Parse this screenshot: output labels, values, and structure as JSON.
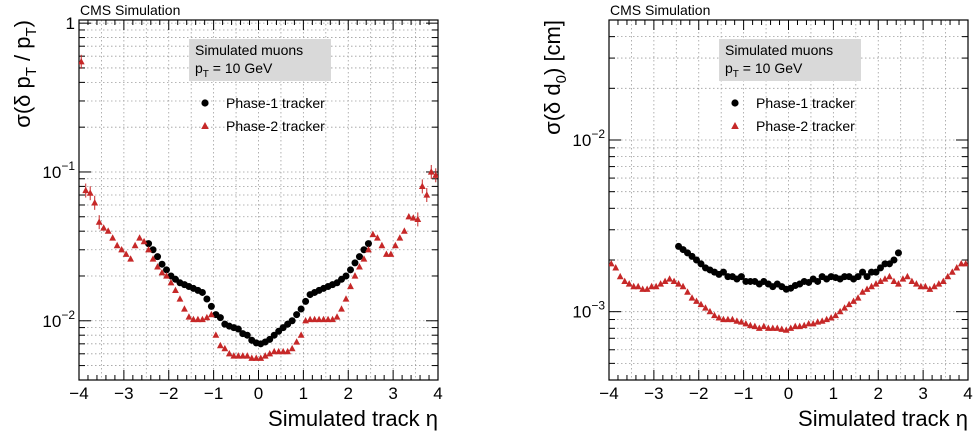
{
  "chart_data": [
    {
      "type": "scatter",
      "header": "CMS Simulation",
      "annotation": {
        "line1": "Simulated muons",
        "line2_sym": "p",
        "line2_sub": "T",
        "line2_rest": " = 10 GeV"
      },
      "xlabel": "Simulated track η",
      "ylabel_parts": {
        "main": "σ(δ p",
        "sub1": "T",
        "mid": " / p",
        "sub2": "T",
        "end": ")"
      },
      "xlim": [
        -4,
        4
      ],
      "ylim": [
        0.004,
        1.05
      ],
      "yscale": "log",
      "x_ticks": [
        -4,
        -3,
        -2,
        -1,
        0,
        1,
        2,
        3,
        4
      ],
      "x_tick_labels": [
        "−4",
        "−3",
        "−2",
        "−1",
        "0",
        "1",
        "2",
        "3",
        "4"
      ],
      "y_ticks": [
        0.01,
        0.1,
        1
      ],
      "y_tick_labels": [
        {
          "base": "10",
          "exp": "−2"
        },
        {
          "base": "10",
          "exp": "−1"
        },
        {
          "base": "1",
          "exp": ""
        }
      ],
      "grid": true,
      "legend_position": "top-center",
      "series": [
        {
          "name": "Phase-1 tracker",
          "marker": "circle",
          "color": "#000000",
          "x": [
            -2.45,
            -2.35,
            -2.25,
            -2.15,
            -2.05,
            -1.95,
            -1.85,
            -1.75,
            -1.65,
            -1.55,
            -1.45,
            -1.35,
            -1.25,
            -1.15,
            -1.05,
            -0.95,
            -0.85,
            -0.75,
            -0.65,
            -0.55,
            -0.45,
            -0.35,
            -0.25,
            -0.15,
            -0.05,
            0.05,
            0.15,
            0.25,
            0.35,
            0.45,
            0.55,
            0.65,
            0.75,
            0.85,
            0.95,
            1.05,
            1.15,
            1.25,
            1.35,
            1.45,
            1.55,
            1.65,
            1.75,
            1.85,
            1.95,
            2.05,
            2.15,
            2.25,
            2.35,
            2.45
          ],
          "y": [
            0.033,
            0.03,
            0.027,
            0.024,
            0.022,
            0.02,
            0.019,
            0.018,
            0.0175,
            0.017,
            0.0165,
            0.016,
            0.0155,
            0.014,
            0.0125,
            0.011,
            0.0105,
            0.0095,
            0.0092,
            0.009,
            0.0088,
            0.0082,
            0.008,
            0.0074,
            0.0071,
            0.007,
            0.0072,
            0.0075,
            0.008,
            0.0085,
            0.009,
            0.0095,
            0.01,
            0.011,
            0.012,
            0.0135,
            0.015,
            0.0155,
            0.016,
            0.0165,
            0.017,
            0.0175,
            0.018,
            0.019,
            0.02,
            0.022,
            0.0245,
            0.027,
            0.03,
            0.033
          ]
        },
        {
          "name": "Phase-2 tracker",
          "marker": "triangle",
          "color": "#c62828",
          "x": [
            -3.95,
            -3.85,
            -3.75,
            -3.65,
            -3.55,
            -3.45,
            -3.35,
            -3.25,
            -3.15,
            -3.05,
            -2.95,
            -2.85,
            -2.75,
            -2.65,
            -2.55,
            -2.45,
            -2.35,
            -2.25,
            -2.15,
            -2.05,
            -1.95,
            -1.85,
            -1.75,
            -1.65,
            -1.55,
            -1.45,
            -1.35,
            -1.25,
            -1.15,
            -1.05,
            -0.95,
            -0.85,
            -0.75,
            -0.65,
            -0.55,
            -0.45,
            -0.35,
            -0.25,
            -0.15,
            -0.05,
            0.05,
            0.15,
            0.25,
            0.35,
            0.45,
            0.55,
            0.65,
            0.75,
            0.85,
            0.95,
            1.05,
            1.15,
            1.25,
            1.35,
            1.45,
            1.55,
            1.65,
            1.75,
            1.85,
            1.95,
            2.05,
            2.15,
            2.25,
            2.35,
            2.45,
            2.55,
            2.65,
            2.75,
            2.85,
            2.95,
            3.05,
            3.15,
            3.25,
            3.35,
            3.45,
            3.55,
            3.65,
            3.75,
            3.85,
            3.95
          ],
          "y": [
            0.55,
            0.075,
            0.072,
            0.062,
            0.046,
            0.042,
            0.04,
            0.036,
            0.032,
            0.03,
            0.028,
            0.026,
            0.032,
            0.036,
            0.034,
            0.03,
            0.026,
            0.023,
            0.021,
            0.02,
            0.018,
            0.016,
            0.014,
            0.012,
            0.0106,
            0.0102,
            0.0102,
            0.0102,
            0.0105,
            0.011,
            0.008,
            0.0068,
            0.0065,
            0.006,
            0.0058,
            0.0058,
            0.0058,
            0.0058,
            0.0056,
            0.0056,
            0.0056,
            0.0058,
            0.006,
            0.0062,
            0.0062,
            0.0062,
            0.0062,
            0.0065,
            0.0072,
            0.008,
            0.01,
            0.0102,
            0.0102,
            0.0102,
            0.0102,
            0.0102,
            0.0102,
            0.0106,
            0.012,
            0.014,
            0.017,
            0.02,
            0.023,
            0.026,
            0.03,
            0.038,
            0.036,
            0.032,
            0.028,
            0.028,
            0.032,
            0.036,
            0.04,
            0.05,
            0.049,
            0.048,
            0.08,
            0.07,
            0.1,
            0.095
          ]
        }
      ]
    },
    {
      "type": "scatter",
      "header": "CMS Simulation",
      "annotation": {
        "line1": "Simulated muons",
        "line2_sym": "p",
        "line2_sub": "T",
        "line2_rest": " = 10 GeV"
      },
      "xlabel": "Simulated track η",
      "ylabel_parts": {
        "main": "σ(δ d",
        "sub1": "0",
        "end": ") [cm]"
      },
      "xlim": [
        -4,
        4
      ],
      "ylim": [
        0.0004,
        0.05
      ],
      "yscale": "log",
      "x_ticks": [
        -4,
        -3,
        -2,
        -1,
        0,
        1,
        2,
        3,
        4
      ],
      "x_tick_labels": [
        "−4",
        "−3",
        "−2",
        "−1",
        "0",
        "1",
        "2",
        "3",
        "4"
      ],
      "y_ticks": [
        0.001,
        0.01
      ],
      "y_tick_labels": [
        {
          "base": "10",
          "exp": "−3"
        },
        {
          "base": "10",
          "exp": "−2"
        }
      ],
      "grid": true,
      "legend_position": "top-center",
      "series": [
        {
          "name": "Phase-1 tracker",
          "marker": "circle",
          "color": "#000000",
          "x": [
            -2.45,
            -2.35,
            -2.25,
            -2.15,
            -2.05,
            -1.95,
            -1.85,
            -1.75,
            -1.65,
            -1.55,
            -1.45,
            -1.35,
            -1.25,
            -1.15,
            -1.05,
            -0.95,
            -0.85,
            -0.75,
            -0.65,
            -0.55,
            -0.45,
            -0.35,
            -0.25,
            -0.15,
            -0.05,
            0.05,
            0.15,
            0.25,
            0.35,
            0.45,
            0.55,
            0.65,
            0.75,
            0.85,
            0.95,
            1.05,
            1.15,
            1.25,
            1.35,
            1.45,
            1.55,
            1.65,
            1.75,
            1.85,
            1.95,
            2.05,
            2.15,
            2.25,
            2.35,
            2.45
          ],
          "y": [
            0.0024,
            0.0023,
            0.0022,
            0.0021,
            0.002,
            0.0019,
            0.0018,
            0.00175,
            0.0017,
            0.00165,
            0.0017,
            0.0016,
            0.0016,
            0.00155,
            0.0016,
            0.0015,
            0.0015,
            0.0015,
            0.00145,
            0.0015,
            0.00145,
            0.0014,
            0.00145,
            0.0014,
            0.00135,
            0.00137,
            0.00142,
            0.00145,
            0.0015,
            0.00148,
            0.00155,
            0.0015,
            0.0016,
            0.00155,
            0.0016,
            0.00158,
            0.00155,
            0.0016,
            0.0016,
            0.00155,
            0.0016,
            0.0017,
            0.0016,
            0.0017,
            0.0017,
            0.0018,
            0.0019,
            0.0019,
            0.002,
            0.0022
          ]
        },
        {
          "name": "Phase-2 tracker",
          "marker": "triangle",
          "color": "#c62828",
          "x": [
            -3.95,
            -3.85,
            -3.75,
            -3.65,
            -3.55,
            -3.45,
            -3.35,
            -3.25,
            -3.15,
            -3.05,
            -2.95,
            -2.85,
            -2.75,
            -2.65,
            -2.55,
            -2.45,
            -2.35,
            -2.25,
            -2.15,
            -2.05,
            -1.95,
            -1.85,
            -1.75,
            -1.65,
            -1.55,
            -1.45,
            -1.35,
            -1.25,
            -1.15,
            -1.05,
            -0.95,
            -0.85,
            -0.75,
            -0.65,
            -0.55,
            -0.45,
            -0.35,
            -0.25,
            -0.15,
            -0.05,
            0.05,
            0.15,
            0.25,
            0.35,
            0.45,
            0.55,
            0.65,
            0.75,
            0.85,
            0.95,
            1.05,
            1.15,
            1.25,
            1.35,
            1.45,
            1.55,
            1.65,
            1.75,
            1.85,
            1.95,
            2.05,
            2.15,
            2.25,
            2.35,
            2.45,
            2.55,
            2.65,
            2.75,
            2.85,
            2.95,
            3.05,
            3.15,
            3.25,
            3.35,
            3.45,
            3.55,
            3.65,
            3.75,
            3.85,
            3.95
          ],
          "y": [
            0.0019,
            0.0018,
            0.0016,
            0.0015,
            0.00145,
            0.0014,
            0.0014,
            0.00135,
            0.00135,
            0.0014,
            0.0014,
            0.00145,
            0.0015,
            0.00155,
            0.0015,
            0.00145,
            0.0014,
            0.0013,
            0.0012,
            0.00115,
            0.0011,
            0.00105,
            0.001,
            0.00095,
            0.00092,
            0.0009,
            0.0009,
            0.0009,
            0.00088,
            0.00087,
            0.00085,
            0.00083,
            0.00082,
            0.0008,
            0.00082,
            0.0008,
            0.0008,
            0.0008,
            0.00079,
            0.00078,
            0.0008,
            0.00082,
            0.00082,
            0.00083,
            0.00085,
            0.00085,
            0.00087,
            0.00088,
            0.0009,
            0.00092,
            0.00095,
            0.001,
            0.00105,
            0.0011,
            0.00115,
            0.0012,
            0.0013,
            0.00135,
            0.0014,
            0.00145,
            0.0015,
            0.00155,
            0.0016,
            0.0015,
            0.00145,
            0.00155,
            0.0016,
            0.0015,
            0.00145,
            0.0014,
            0.0014,
            0.00135,
            0.0014,
            0.00145,
            0.0015,
            0.0016,
            0.0017,
            0.0018,
            0.0019,
            0.0019
          ]
        }
      ]
    }
  ]
}
